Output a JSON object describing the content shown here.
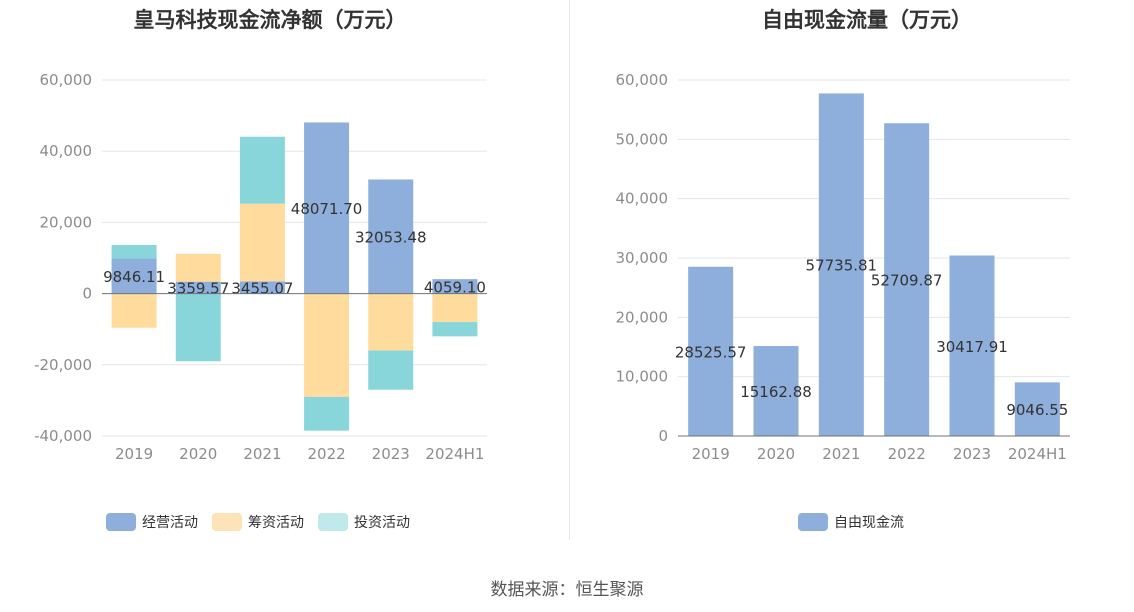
{
  "chart_data": [
    {
      "type": "bar",
      "stacked": true,
      "title": "皇马科技现金流净额（万元）",
      "categories": [
        "2019",
        "2020",
        "2021",
        "2022",
        "2023",
        "2024H1"
      ],
      "ylim": [
        -40000,
        60000
      ],
      "yticks": [
        60000,
        40000,
        20000,
        0,
        -20000,
        -40000
      ],
      "ytick_labels": [
        "60,000",
        "40,000",
        "20,000",
        "0",
        "-20,000",
        "-40,000"
      ],
      "grid": true,
      "legend_position": "bottom",
      "series": [
        {
          "name": "经营活动",
          "color": "#8eaedb",
          "values": [
            9846.11,
            3359.57,
            3455.07,
            48071.7,
            32053.48,
            4059.1
          ]
        },
        {
          "name": "筹资活动",
          "color": "#ffdb9e",
          "values": [
            -9600,
            7800,
            21800,
            -29000,
            -16000,
            -8000
          ]
        },
        {
          "name": "投资活动",
          "color": "#88d6da",
          "values": [
            3800,
            -19000,
            18800,
            -9500,
            -11000,
            -4000
          ]
        }
      ],
      "data_labels": [
        "9846.11",
        "3359.57",
        "3455.07",
        "48071.70",
        "32053.48",
        "4059.10"
      ]
    },
    {
      "type": "bar",
      "title": "自由现金流量（万元）",
      "categories": [
        "2019",
        "2020",
        "2021",
        "2022",
        "2023",
        "2024H1"
      ],
      "ylim": [
        0,
        60000
      ],
      "yticks": [
        60000,
        50000,
        40000,
        30000,
        20000,
        10000,
        0
      ],
      "ytick_labels": [
        "60,000",
        "50,000",
        "40,000",
        "30,000",
        "20,000",
        "10,000",
        "0"
      ],
      "grid": true,
      "legend_position": "bottom",
      "series": [
        {
          "name": "自由现金流",
          "color": "#8eaedb",
          "values": [
            28525.57,
            15162.88,
            57735.81,
            52709.87,
            30417.91,
            9046.55
          ]
        }
      ],
      "data_labels": [
        "28525.57",
        "15162.88",
        "57735.81",
        "52709.87",
        "30417.91",
        "9046.55"
      ]
    }
  ],
  "legend_left": [
    {
      "label": "经营活动",
      "color": "#8eaedb"
    },
    {
      "label": "筹资活动",
      "color": "#ffe3b8"
    },
    {
      "label": "投资活动",
      "color": "#c0e9eb"
    }
  ],
  "legend_right": [
    {
      "label": "自由现金流",
      "color": "#8eaedb"
    }
  ],
  "source": "数据来源：恒生聚源"
}
